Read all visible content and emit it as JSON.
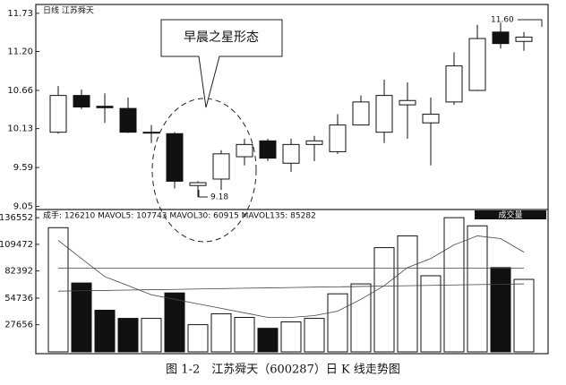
{
  "chart_data": [
    {
      "type": "candlestick",
      "title": "日线 江苏舜天",
      "categories": [
        null,
        null,
        null,
        null,
        null,
        null,
        null,
        null,
        null,
        null,
        null,
        null,
        null,
        null,
        null,
        null,
        null,
        null,
        null,
        null,
        null
      ],
      "open": [
        10.08,
        10.59,
        10.44,
        10.41,
        10.08,
        10.06,
        9.34,
        9.43,
        9.74,
        9.96,
        9.65,
        9.91,
        9.81,
        10.18,
        10.08,
        10.46,
        10.21,
        10.5,
        10.66,
        11.47,
        11.34
      ],
      "close": [
        10.59,
        10.43,
        10.42,
        10.08,
        10.08,
        9.4,
        9.38,
        9.78,
        9.91,
        9.72,
        9.91,
        9.96,
        10.18,
        10.5,
        10.59,
        10.52,
        10.33,
        11.0,
        11.38,
        11.31,
        11.4
      ],
      "high": [
        10.72,
        10.67,
        10.62,
        10.56,
        10.18,
        10.08,
        9.4,
        9.83,
        9.99,
        9.99,
        9.99,
        10.03,
        10.33,
        10.59,
        10.81,
        10.77,
        10.56,
        11.19,
        11.57,
        11.6,
        11.47
      ],
      "low": [
        10.06,
        10.4,
        10.21,
        10.07,
        9.93,
        9.3,
        9.18,
        9.28,
        9.62,
        9.68,
        9.53,
        9.68,
        9.78,
        10.18,
        9.93,
        9.99,
        9.62,
        10.46,
        10.65,
        11.24,
        11.21
      ],
      "ylim": [
        9.02,
        11.84
      ],
      "yticks": [
        11.73,
        {
          "value": 11.2,
          "label": "11.20"
        },
        10.66,
        10.13,
        9.59,
        9.05
      ],
      "annotations": [
        {
          "text": "早晨之星形态"
        },
        {
          "text": "9.18"
        },
        {
          "text": "11.60"
        }
      ]
    },
    {
      "type": "bar",
      "title": "成手: 126210 MAVOL5: 107743 MAVOL30: 60915 MAVOL135: 85282",
      "badge": "成交量",
      "values": [
        126400,
        70100,
        42400,
        34100,
        34100,
        60000,
        27700,
        38800,
        35100,
        24000,
        30500,
        34100,
        59100,
        69200,
        106100,
        118100,
        77500,
        136600,
        128300,
        85800,
        73800
      ],
      "lines": [
        {
          "color": "#444",
          "values": [
            113500,
            95000,
            76600,
            67400,
            58100,
            53500,
            48900,
            44300,
            39700,
            35100,
            35100,
            36900,
            41500,
            53500,
            67400,
            85800,
            95000,
            108900,
            118100,
            115300,
            101500
          ]
        },
        {
          "color": "#444",
          "values": [
            61800,
            62200,
            62500,
            62900,
            63300,
            63600,
            64000,
            64400,
            64800,
            65100,
            65500,
            65900,
            66200,
            66600,
            67000,
            67300,
            67700,
            68100,
            68500,
            68800,
            69200
          ]
        },
        {
          "color": "#444",
          "values": [
            85300,
            85300,
            85300,
            85300,
            85300,
            85300,
            85300,
            85300,
            85300,
            85300,
            85300,
            85300,
            85300,
            85300,
            85300,
            85300,
            85300,
            85300,
            85300,
            85300,
            85300
          ]
        }
      ],
      "ylim": [
        0,
        144000
      ],
      "yticks": [
        136552,
        109472,
        82392,
        54736,
        27656
      ]
    }
  ],
  "caption": "图 1-2　江苏舜天（600287）日 K 线走势图"
}
